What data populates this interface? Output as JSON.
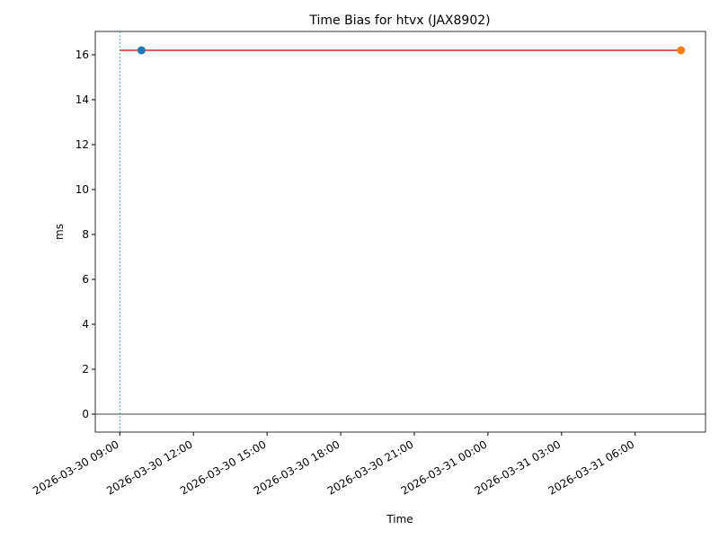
{
  "chart_data": {
    "type": "line",
    "title": "Time Bias for htvx (JAX8902)",
    "xlabel": "Time",
    "ylabel": "ms",
    "xlim": [
      "2026-03-30 08:00",
      "2026-03-31 08:52"
    ],
    "xticks": [
      "2026-03-30 09:00",
      "2026-03-30 12:00",
      "2026-03-30 15:00",
      "2026-03-30 18:00",
      "2026-03-30 21:00",
      "2026-03-31 00:00",
      "2026-03-31 03:00",
      "2026-03-31 06:00"
    ],
    "ylim": [
      -0.8,
      17.04
    ],
    "yticks": [
      0,
      2,
      4,
      6,
      8,
      10,
      12,
      14,
      16
    ],
    "series": [
      {
        "style": "line",
        "color": "#d62728",
        "x": [
          "2026-03-30 09:00",
          "2026-03-31 07:52"
        ],
        "values": [
          16.2,
          16.2
        ]
      },
      {
        "style": "marker",
        "color": "#1f77b4",
        "x": [
          "2026-03-30 09:53"
        ],
        "values": [
          16.2
        ]
      },
      {
        "style": "marker",
        "color": "#ff7f0e",
        "x": [
          "2026-03-31 07:52"
        ],
        "values": [
          16.2
        ]
      }
    ],
    "vline": {
      "x": "2026-03-30 09:00",
      "color": "#17becf"
    },
    "hline": {
      "value": 0,
      "color": "#000000"
    }
  }
}
